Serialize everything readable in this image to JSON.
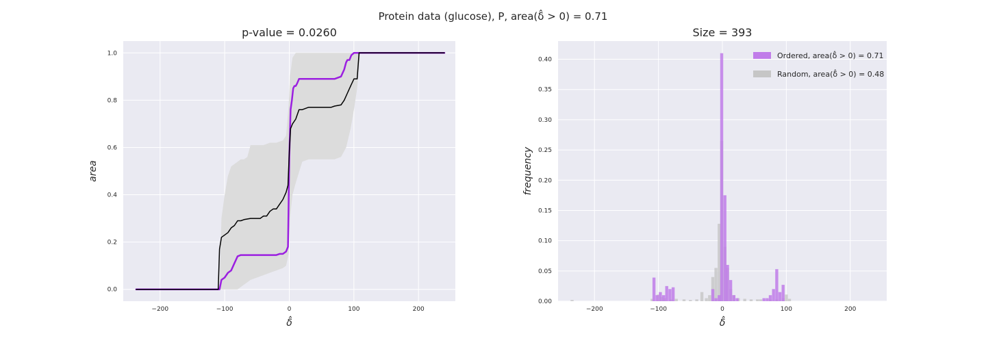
{
  "figure": {
    "suptitle": "Protein data (glucose), P, area(δ̂ > 0) = 0.71",
    "background": "#ffffff",
    "axes_facecolor": "#eaeaf2",
    "grid_color": "#ffffff"
  },
  "chart_data": [
    {
      "type": "line",
      "title": "p-value = 0.0260",
      "xlabel": "δ̂",
      "ylabel": "area",
      "xlim": [
        -257,
        257
      ],
      "ylim": [
        -0.05,
        1.05
      ],
      "xticks": [
        -200,
        -100,
        0,
        100,
        200
      ],
      "xtick_labels": [
        "−200",
        "−100",
        "0",
        "100",
        "200"
      ],
      "yticks": [
        0.0,
        0.2,
        0.4,
        0.6,
        0.8,
        1.0
      ],
      "ytick_labels": [
        "0.0",
        "0.2",
        "0.4",
        "0.6",
        "0.8",
        "1.0"
      ],
      "grid": true,
      "band": {
        "color": "#dcdcdc",
        "x": [
          -237,
          -108,
          -105,
          -100,
          -95,
          -90,
          -80,
          -75,
          -70,
          -65,
          -60,
          -50,
          -40,
          -30,
          -20,
          -10,
          -5,
          -1,
          1,
          5,
          10,
          20,
          30,
          40,
          50,
          60,
          70,
          80,
          88,
          95,
          100,
          105,
          110,
          240
        ],
        "lower": [
          0,
          0,
          0,
          0,
          0,
          0,
          0,
          0.01,
          0.02,
          0.03,
          0.04,
          0.05,
          0.06,
          0.07,
          0.08,
          0.09,
          0.1,
          0.15,
          0.3,
          0.4,
          0.45,
          0.54,
          0.55,
          0.55,
          0.55,
          0.55,
          0.55,
          0.56,
          0.6,
          0.68,
          0.76,
          0.85,
          1.0,
          1.0
        ],
        "upper": [
          0,
          0,
          0.3,
          0.4,
          0.48,
          0.52,
          0.54,
          0.55,
          0.55,
          0.56,
          0.61,
          0.61,
          0.61,
          0.62,
          0.62,
          0.63,
          0.65,
          0.78,
          0.9,
          0.98,
          1.0,
          1.0,
          1.0,
          1.0,
          1.0,
          1.0,
          1.0,
          1.0,
          1.0,
          1.0,
          1.0,
          1.0,
          1.0,
          1.0
        ]
      },
      "series": [
        {
          "color": "#9b1fe0",
          "width": 2.5,
          "x": [
            -237,
            -108,
            -105,
            -100,
            -95,
            -90,
            -85,
            -80,
            -75,
            -70,
            -60,
            -50,
            -40,
            -30,
            -20,
            -15,
            -10,
            -5,
            -2,
            0,
            2,
            4,
            6,
            8,
            10,
            12,
            15,
            20,
            30,
            40,
            50,
            60,
            65,
            70,
            80,
            85,
            88,
            90,
            93,
            96,
            100,
            105,
            110,
            240
          ],
          "y": [
            0,
            0,
            0.04,
            0.05,
            0.07,
            0.08,
            0.11,
            0.14,
            0.145,
            0.145,
            0.145,
            0.145,
            0.145,
            0.145,
            0.145,
            0.15,
            0.15,
            0.16,
            0.18,
            0.56,
            0.76,
            0.8,
            0.85,
            0.86,
            0.86,
            0.87,
            0.89,
            0.89,
            0.89,
            0.89,
            0.89,
            0.89,
            0.89,
            0.89,
            0.9,
            0.93,
            0.96,
            0.97,
            0.97,
            0.99,
            1.0,
            1.0,
            1.0,
            1.0
          ]
        },
        {
          "color": "#000000",
          "width": 1.5,
          "x": [
            -237,
            -110,
            -108,
            -105,
            -100,
            -95,
            -90,
            -85,
            -80,
            -75,
            -70,
            -60,
            -55,
            -50,
            -45,
            -40,
            -35,
            -30,
            -25,
            -20,
            -15,
            -10,
            -5,
            -2,
            0,
            2,
            5,
            10,
            15,
            20,
            30,
            40,
            50,
            60,
            65,
            70,
            80,
            85,
            90,
            95,
            100,
            105,
            108,
            240
          ],
          "y": [
            0,
            0,
            0.17,
            0.22,
            0.23,
            0.24,
            0.26,
            0.27,
            0.29,
            0.29,
            0.295,
            0.3,
            0.3,
            0.3,
            0.3,
            0.31,
            0.31,
            0.33,
            0.34,
            0.34,
            0.36,
            0.38,
            0.41,
            0.44,
            0.58,
            0.68,
            0.7,
            0.72,
            0.76,
            0.76,
            0.77,
            0.77,
            0.77,
            0.77,
            0.77,
            0.775,
            0.78,
            0.8,
            0.83,
            0.86,
            0.89,
            0.89,
            1.0,
            1.0
          ]
        }
      ]
    },
    {
      "type": "bar",
      "title": "Size = 393",
      "xlabel": "δ̂",
      "ylabel": "frequency",
      "xlim": [
        -257,
        257
      ],
      "ylim": [
        0,
        0.43
      ],
      "xticks": [
        -200,
        -100,
        0,
        100,
        200
      ],
      "xtick_labels": [
        "−200",
        "−100",
        "0",
        "100",
        "200"
      ],
      "yticks": [
        0.0,
        0.05,
        0.1,
        0.15,
        0.2,
        0.25,
        0.3,
        0.35,
        0.4
      ],
      "ytick_labels": [
        "0.00",
        "0.05",
        "0.10",
        "0.15",
        "0.20",
        "0.25",
        "0.30",
        "0.35",
        "0.40"
      ],
      "grid": true,
      "bin_width": 4.75,
      "legend": {
        "position": "upper-right",
        "entries": [
          "Ordered, area(δ̂ > 0) = 0.71",
          "Random, area(δ̂ > 0) = 0.48"
        ]
      },
      "series": [
        {
          "color": "#c07ce9",
          "x": [
            -107,
            -102,
            -97,
            -92,
            -87,
            -82,
            -77,
            -15,
            -10,
            -5,
            -1,
            4,
            8,
            13,
            18,
            23,
            65,
            70,
            75,
            80,
            85,
            90,
            95
          ],
          "values": [
            0.039,
            0.01,
            0.015,
            0.01,
            0.025,
            0.02,
            0.023,
            0.02,
            0.005,
            0.01,
            0.41,
            0.175,
            0.06,
            0.035,
            0.01,
            0.005,
            0.005,
            0.005,
            0.01,
            0.02,
            0.053,
            0.015,
            0.027
          ]
        },
        {
          "color": "#c6c6c6",
          "x": [
            -235,
            -110,
            -100,
            -95,
            -90,
            -80,
            -72,
            -60,
            -50,
            -40,
            -32,
            -25,
            -20,
            -15,
            -10,
            -5,
            -1,
            4,
            8,
            13,
            18,
            25,
            35,
            45,
            55,
            60,
            75,
            85,
            95,
            100,
            105
          ],
          "values": [
            0.002,
            0.004,
            0.011,
            0.007,
            0.005,
            0.003,
            0.004,
            0.003,
            0.002,
            0.003,
            0.015,
            0.005,
            0.01,
            0.04,
            0.055,
            0.128,
            0.265,
            0.09,
            0.055,
            0.02,
            0.01,
            0.005,
            0.004,
            0.003,
            0.003,
            0.003,
            0.003,
            0.003,
            0.005,
            0.011,
            0.004
          ]
        }
      ]
    }
  ]
}
